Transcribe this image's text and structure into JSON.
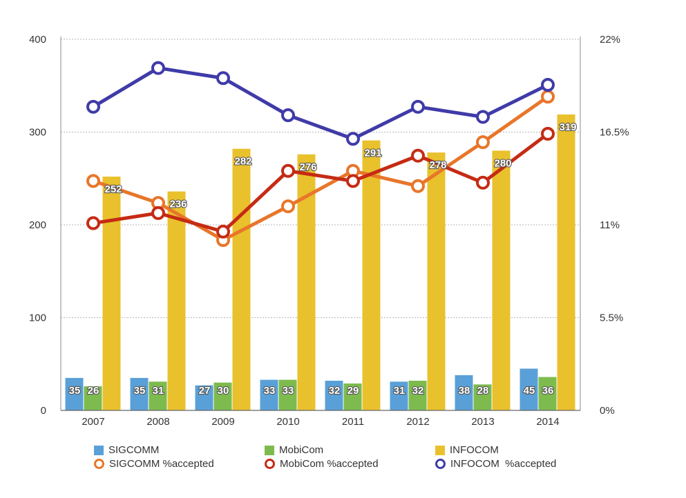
{
  "chart_data": {
    "type": "bar",
    "categories": [
      "2007",
      "2008",
      "2009",
      "2010",
      "2011",
      "2012",
      "2013",
      "2014"
    ],
    "y_left": {
      "ticks": [
        "0",
        "100",
        "200",
        "300",
        "400"
      ],
      "ylim": [
        0,
        400
      ]
    },
    "y_right": {
      "ticks": [
        "0%",
        "5.5%",
        "11%",
        "16.5%",
        "22%"
      ],
      "ylim": [
        0,
        22
      ]
    },
    "grid": true,
    "bar_series": [
      {
        "name": "SIGCOMM",
        "color": "#5aa0d8",
        "values": [
          35,
          35,
          27,
          33,
          32,
          31,
          38,
          45
        ]
      },
      {
        "name": "MobiCom",
        "color": "#7dbb4e",
        "values": [
          26,
          31,
          30,
          33,
          29,
          32,
          28,
          36
        ]
      },
      {
        "name": "INFOCOM",
        "color": "#e9c12d",
        "values": [
          252,
          236,
          282,
          276,
          291,
          278,
          280,
          319
        ]
      }
    ],
    "line_series": [
      {
        "name": "SIGCOMM %accepted",
        "color": "#e8762a",
        "values": [
          13.6,
          12.3,
          10.1,
          12.1,
          14.2,
          13.3,
          15.9,
          18.6
        ]
      },
      {
        "name": "MobiCom %accepted",
        "color": "#c52b14",
        "values": [
          11.1,
          11.7,
          10.6,
          14.2,
          13.6,
          15.1,
          13.5,
          16.4
        ]
      },
      {
        "name": "INFOCOM  %accepted",
        "color": "#3f3ba8",
        "values": [
          18.0,
          20.3,
          19.7,
          17.5,
          16.1,
          18.0,
          17.4,
          19.3
        ]
      }
    ],
    "legend": "bottom"
  }
}
